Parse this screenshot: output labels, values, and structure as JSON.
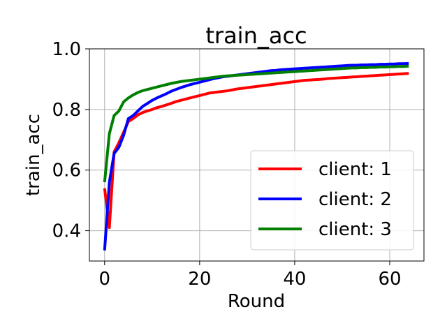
{
  "chart_data": {
    "type": "line",
    "title": "train_acc",
    "xlabel": "Round",
    "ylabel": "train_acc",
    "xlim": [
      -3.2,
      67.2
    ],
    "ylim": [
      0.3,
      1.0
    ],
    "xticks": [
      0,
      20,
      40,
      60
    ],
    "xtick_labels": [
      "0",
      "20",
      "40",
      "60"
    ],
    "yticks": [
      0.4,
      0.6,
      0.8,
      1.0
    ],
    "ytick_labels": [
      "0.4",
      "0.6",
      "0.8",
      "1.0"
    ],
    "grid": true,
    "legend_position": "lower-right",
    "series": [
      {
        "name": "client: 1",
        "color": "#ff0000",
        "values": [
          0.54,
          0.41,
          0.66,
          0.69,
          0.725,
          0.76,
          0.77,
          0.782,
          0.79,
          0.795,
          0.8,
          0.806,
          0.81,
          0.815,
          0.82,
          0.826,
          0.83,
          0.834,
          0.838,
          0.842,
          0.846,
          0.85,
          0.854,
          0.856,
          0.858,
          0.86,
          0.862,
          0.865,
          0.868,
          0.87,
          0.872,
          0.874,
          0.876,
          0.878,
          0.88,
          0.882,
          0.884,
          0.886,
          0.888,
          0.89,
          0.892,
          0.894,
          0.896,
          0.897,
          0.898,
          0.899,
          0.9,
          0.902,
          0.903,
          0.904,
          0.905,
          0.906,
          0.907,
          0.908,
          0.909,
          0.91,
          0.911,
          0.912,
          0.913,
          0.914,
          0.915,
          0.916,
          0.917,
          0.918,
          0.919
        ]
      },
      {
        "name": "client: 2",
        "color": "#0000ff",
        "values": [
          0.335,
          0.56,
          0.655,
          0.675,
          0.715,
          0.77,
          0.78,
          0.795,
          0.81,
          0.82,
          0.83,
          0.838,
          0.845,
          0.852,
          0.86,
          0.866,
          0.872,
          0.877,
          0.882,
          0.886,
          0.89,
          0.894,
          0.898,
          0.902,
          0.905,
          0.908,
          0.91,
          0.912,
          0.914,
          0.916,
          0.918,
          0.92,
          0.922,
          0.924,
          0.926,
          0.928,
          0.929,
          0.931,
          0.932,
          0.933,
          0.934,
          0.935,
          0.936,
          0.937,
          0.938,
          0.939,
          0.94,
          0.941,
          0.942,
          0.943,
          0.944,
          0.945,
          0.946,
          0.946,
          0.947,
          0.947,
          0.948,
          0.948,
          0.949,
          0.949,
          0.95,
          0.95,
          0.951,
          0.951,
          0.952
        ]
      },
      {
        "name": "client: 3",
        "color": "#008000",
        "values": [
          0.56,
          0.72,
          0.78,
          0.795,
          0.825,
          0.838,
          0.848,
          0.856,
          0.862,
          0.866,
          0.87,
          0.874,
          0.878,
          0.882,
          0.886,
          0.889,
          0.892,
          0.894,
          0.896,
          0.898,
          0.9,
          0.902,
          0.904,
          0.906,
          0.908,
          0.91,
          0.911,
          0.912,
          0.913,
          0.914,
          0.915,
          0.916,
          0.917,
          0.918,
          0.919,
          0.92,
          0.921,
          0.922,
          0.923,
          0.924,
          0.925,
          0.926,
          0.927,
          0.928,
          0.929,
          0.93,
          0.931,
          0.932,
          0.933,
          0.934,
          0.935,
          0.936,
          0.937,
          0.937,
          0.938,
          0.938,
          0.939,
          0.939,
          0.94,
          0.94,
          0.941,
          0.941,
          0.942,
          0.942,
          0.943
        ]
      }
    ]
  }
}
